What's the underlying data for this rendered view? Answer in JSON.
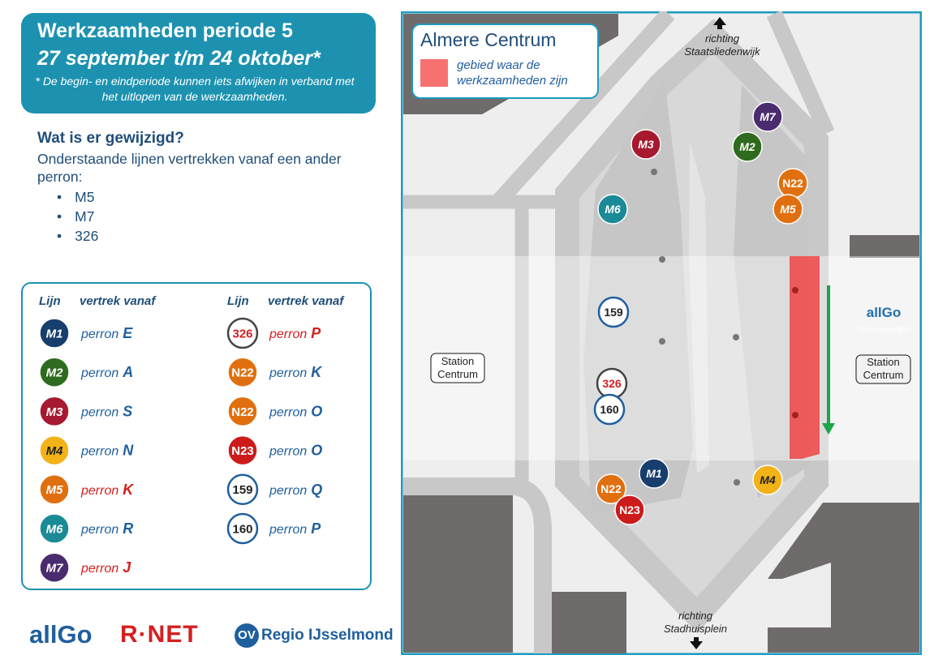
{
  "header": {
    "title": "Werkzaamheden periode 5",
    "dates": "27 september t/m 24 oktober*",
    "note": "* De begin- en eindperiode kunnen iets afwijken in verband met het uitlopen van de werkzaamheden."
  },
  "changes": {
    "heading": "Wat is er gewijzigd?",
    "text": "Onderstaande lijnen vertrekken vanaf een ander perron:",
    "items": [
      "M5",
      "M7",
      "326"
    ]
  },
  "table": {
    "columns": [
      {
        "headers": [
          "Lijn",
          "vertrek vanaf"
        ],
        "rows": [
          {
            "line": "M1",
            "color": "#173e6d",
            "style": "filled",
            "perron": "perron",
            "platform": "E",
            "changed": false
          },
          {
            "line": "M2",
            "color": "#2f6b1e",
            "style": "filled",
            "perron": "perron",
            "platform": "A",
            "changed": false
          },
          {
            "line": "M3",
            "color": "#a6192e",
            "style": "filled",
            "perron": "perron",
            "platform": "S",
            "changed": false
          },
          {
            "line": "M4",
            "color": "#f2b318",
            "style": "filled",
            "perron": "perron",
            "platform": "N",
            "changed": false
          },
          {
            "line": "M5",
            "color": "#e0700f",
            "style": "filled",
            "perron": "perron",
            "platform": "K",
            "changed": true
          },
          {
            "line": "M6",
            "color": "#198a96",
            "style": "filled",
            "perron": "perron",
            "platform": "R",
            "changed": false
          },
          {
            "line": "M7",
            "color": "#4a2c6e",
            "style": "filled",
            "perron": "perron",
            "platform": "J",
            "changed": true
          }
        ]
      },
      {
        "headers": [
          "Lijn",
          "vertrek vanaf"
        ],
        "rows": [
          {
            "line": "326",
            "color": "#444444",
            "style": "outline",
            "perron": "perron",
            "platform": "P",
            "changed": true
          },
          {
            "line": "N22",
            "color": "#e0700f",
            "style": "filled",
            "perron": "perron",
            "platform": "K",
            "changed": false
          },
          {
            "line": "N22",
            "color": "#e0700f",
            "style": "filled",
            "perron": "perron",
            "platform": "O",
            "changed": false
          },
          {
            "line": "N23",
            "color": "#cc1b1b",
            "style": "filled",
            "perron": "perron",
            "platform": "O",
            "changed": false
          },
          {
            "line": "159",
            "color": "#1f5f9e",
            "style": "outline",
            "perron": "perron",
            "platform": "Q",
            "changed": false
          },
          {
            "line": "160",
            "color": "#1f5f9e",
            "style": "outline",
            "perron": "perron",
            "platform": "P",
            "changed": false
          }
        ]
      }
    ]
  },
  "map": {
    "legend_title": "Almere Centrum",
    "legend_text": "gebied waar de werkzaamheden zijn",
    "north": "richting Staatsliedenwijk",
    "south": "richting Stadhuisplein",
    "station_left": "Station Centrum",
    "station_right": "Station Centrum",
    "shop_brand": "allGo",
    "shop": "Servicewinkel",
    "stops": [
      {
        "label": "M3",
        "color": "#a6192e",
        "style": "filled"
      },
      {
        "label": "M7",
        "color": "#4a2c6e",
        "style": "filled"
      },
      {
        "label": "M2",
        "color": "#2f6b1e",
        "style": "filled"
      },
      {
        "label": "N22",
        "color": "#e0700f",
        "style": "filled"
      },
      {
        "label": "M5",
        "color": "#e0700f",
        "style": "filled"
      },
      {
        "label": "M6",
        "color": "#198a96",
        "style": "filled"
      },
      {
        "label": "159",
        "color": "#1f5f9e",
        "style": "outline"
      },
      {
        "label": "326",
        "color": "#444444",
        "style": "outline",
        "text_color": "#d42020"
      },
      {
        "label": "160",
        "color": "#1f5f9e",
        "style": "outline"
      },
      {
        "label": "M1",
        "color": "#173e6d",
        "style": "filled"
      },
      {
        "label": "N22",
        "color": "#e0700f",
        "style": "filled"
      },
      {
        "label": "N23",
        "color": "#cc1b1b",
        "style": "filled"
      },
      {
        "label": "M4",
        "color": "#f2b318",
        "style": "filled"
      }
    ]
  },
  "logos": [
    "allGo",
    "R·NET",
    "OV",
    "Regio IJsselmond"
  ]
}
